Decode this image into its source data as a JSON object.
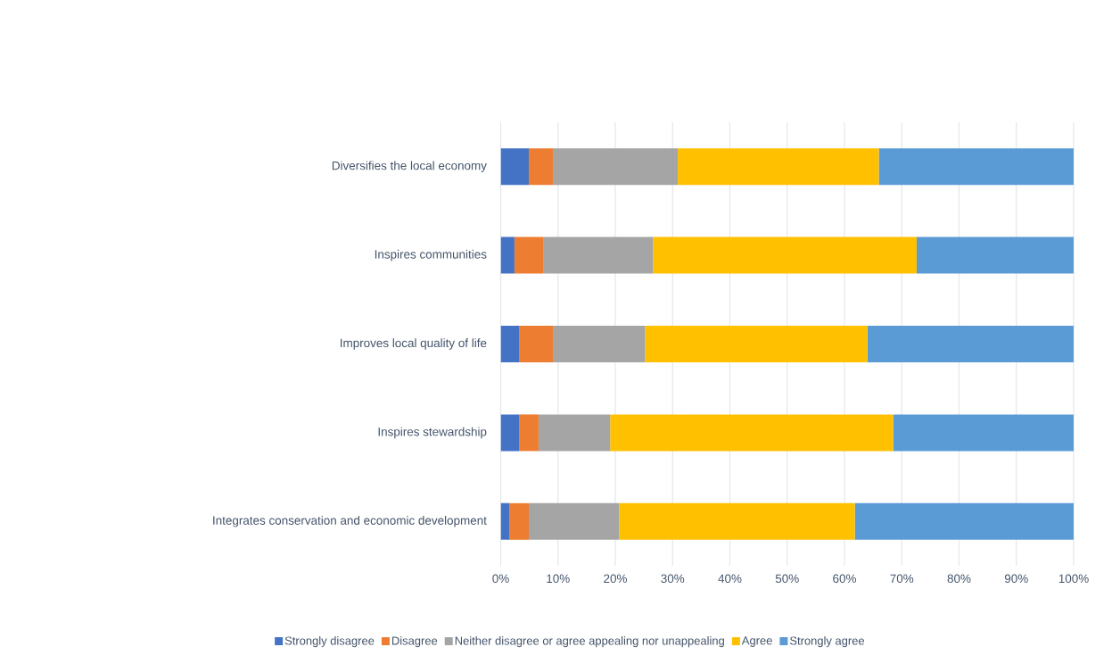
{
  "chart_data": {
    "type": "bar",
    "orientation": "horizontal",
    "stacked": true,
    "categories": [
      "Diversifies the local economy",
      "Inspires communities",
      "Improves local quality of life",
      "Inspires stewardship",
      "Integrates conservation and economic development"
    ],
    "series": [
      {
        "name": "Strongly disagree",
        "color": "#4472c4",
        "values": [
          4.9,
          2.4,
          3.2,
          3.2,
          1.5
        ]
      },
      {
        "name": "Disagree",
        "color": "#ed7d31",
        "values": [
          4.2,
          5.0,
          5.9,
          3.4,
          3.4
        ]
      },
      {
        "name": "Neither disagree or agree appealing nor unappealing",
        "color": "#a5a5a5",
        "values": [
          21.8,
          19.2,
          16.1,
          12.5,
          15.8
        ]
      },
      {
        "name": "Agree",
        "color": "#ffc000",
        "values": [
          35.1,
          46.0,
          38.8,
          49.4,
          41.1
        ]
      },
      {
        "name": "Strongly agree",
        "color": "#5b9bd5",
        "values": [
          34.0,
          27.4,
          36.0,
          31.5,
          38.2
        ]
      }
    ],
    "xlim": [
      0,
      100
    ],
    "xticks": [
      {
        "value": 0,
        "label": "0%"
      },
      {
        "value": 10,
        "label": "10%"
      },
      {
        "value": 20,
        "label": "20%"
      },
      {
        "value": 30,
        "label": "30%"
      },
      {
        "value": 40,
        "label": "40%"
      },
      {
        "value": 50,
        "label": "50%"
      },
      {
        "value": 60,
        "label": "60%"
      },
      {
        "value": 70,
        "label": "70%"
      },
      {
        "value": 80,
        "label": "80%"
      },
      {
        "value": 90,
        "label": "90%"
      },
      {
        "value": 100,
        "label": "100%"
      }
    ],
    "grid": "x",
    "legend": "bottom"
  }
}
